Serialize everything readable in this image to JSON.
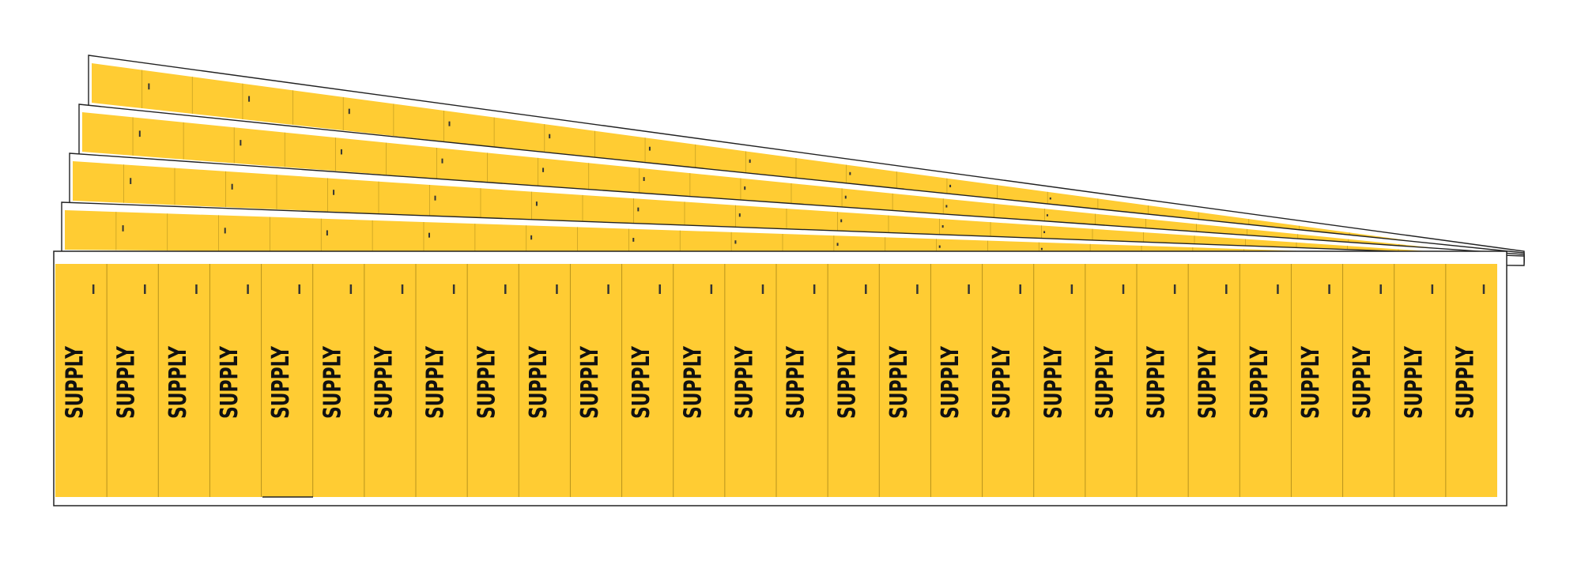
{
  "product": {
    "name": "pipe marker label strips",
    "legend": "SUPPLY",
    "strip_count": 5,
    "markers_per_strip": 28,
    "colors": {
      "background": "#FFCC33",
      "text": "#111111",
      "border": "#222222",
      "backing": "#ffffff"
    }
  }
}
